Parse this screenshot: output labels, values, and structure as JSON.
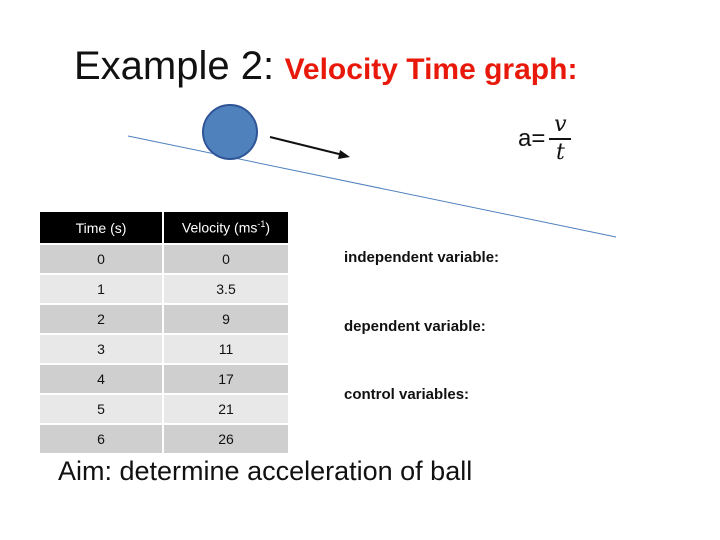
{
  "title": {
    "prefix": "Example 2:",
    "highlight": "Velocity Time graph:"
  },
  "formula": {
    "lhs": "a=",
    "numerator": "v",
    "denominator": "t"
  },
  "table": {
    "headers": [
      "Time (s)",
      "Velocity (ms",
      "-1",
      ")"
    ],
    "rows": [
      [
        "0",
        "0"
      ],
      [
        "1",
        "3.5"
      ],
      [
        "2",
        "9"
      ],
      [
        "3",
        "11"
      ],
      [
        "4",
        "17"
      ],
      [
        "5",
        "21"
      ],
      [
        "6",
        "26"
      ]
    ]
  },
  "variables": {
    "independent": "independent variable:",
    "dependent": "dependent variable:",
    "control": "control variables:"
  },
  "aim": "Aim: determine acceleration of ball",
  "colors": {
    "title_accent": "#e8190a",
    "ball_fill": "#4f81bd",
    "ball_stroke": "#2f5597",
    "slope_line": "#4f81bd",
    "table_header": "#000000",
    "row_odd": "#cfcfcf",
    "row_even": "#e8e8e8"
  }
}
